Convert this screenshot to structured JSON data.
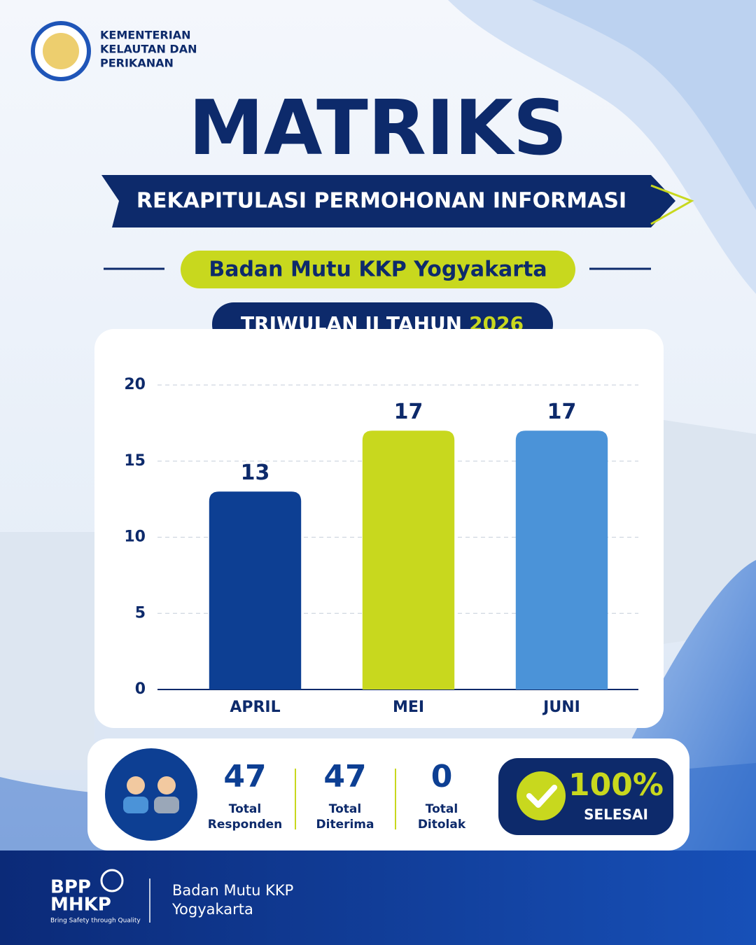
{
  "header": {
    "org_lines": [
      "KEMENTERIAN",
      "KELAUTAN DAN",
      "PERIKANAN"
    ]
  },
  "title": "MATRIKS",
  "subtitle": "REKAPITULASI PERMOHONAN INFORMASI",
  "unit": "Badan Mutu KKP Yogyakarta",
  "period": {
    "text": "TRIWULAN II TAHUN",
    "year": "2026"
  },
  "chart_data": {
    "type": "bar",
    "categories": [
      "APRIL",
      "MEI",
      "JUNI"
    ],
    "values": [
      13,
      17,
      17
    ],
    "colors": [
      "#0d3f93",
      "#c8d81e",
      "#4b93d8"
    ],
    "ylim": [
      0,
      20
    ],
    "yticks": [
      0,
      5,
      10,
      15,
      20
    ],
    "grid": true
  },
  "summary": {
    "stats": [
      {
        "value": 47,
        "label": [
          "Total",
          "Responden"
        ]
      },
      {
        "value": 47,
        "label": [
          "Total",
          "Diterima"
        ]
      },
      {
        "value": 0,
        "label": [
          "Total",
          "Ditolak"
        ]
      }
    ],
    "completion": {
      "percent": "100%",
      "label": "SELESAI"
    }
  },
  "footer": {
    "logo": [
      "BPP",
      "MHKP"
    ],
    "tagline": "Bring Safety through Quality",
    "name_lines": [
      "Badan Mutu KKP",
      "Yogyakarta"
    ]
  }
}
